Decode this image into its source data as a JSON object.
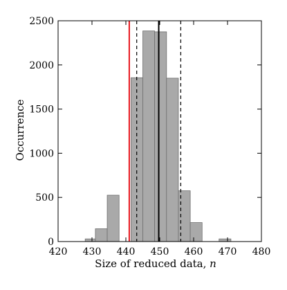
{
  "chart_data": {
    "type": "bar",
    "xlabel": "Size of reduced data, ",
    "xlabel_var": "n",
    "ylabel": "Occurrence",
    "xlim": [
      420,
      480
    ],
    "ylim": [
      0,
      2500
    ],
    "x_ticks": [
      420,
      430,
      440,
      450,
      460,
      470,
      480
    ],
    "y_ticks": [
      0,
      500,
      1000,
      1500,
      2000,
      2500
    ],
    "x_tick_labels": [
      "420",
      "430",
      "440",
      "450",
      "460",
      "470",
      "480"
    ],
    "y_tick_labels": [
      "0",
      "500",
      "1000",
      "1500",
      "2000",
      "2500"
    ],
    "bins": [
      {
        "start": 428,
        "end": 431,
        "count": 30
      },
      {
        "start": 431,
        "end": 434.5,
        "count": 145
      },
      {
        "start": 434.5,
        "end": 438,
        "count": 525
      },
      {
        "start": 441.5,
        "end": 445,
        "count": 1855
      },
      {
        "start": 445,
        "end": 448.5,
        "count": 2385
      },
      {
        "start": 448.5,
        "end": 452,
        "count": 2375
      },
      {
        "start": 452,
        "end": 455.5,
        "count": 1850
      },
      {
        "start": 455.5,
        "end": 459,
        "count": 575
      },
      {
        "start": 459,
        "end": 462.5,
        "count": 215
      },
      {
        "start": 467.5,
        "end": 471,
        "count": 30
      }
    ],
    "reference_lines": [
      {
        "x": 441,
        "style": "solid",
        "color": "#e8141b"
      },
      {
        "x": 443.2,
        "style": "dashed",
        "color": "#000000"
      },
      {
        "x": 449.7,
        "style": "solid",
        "color": "#000000"
      },
      {
        "x": 456.2,
        "style": "dashed",
        "color": "#000000"
      }
    ],
    "bar_fill": "#a9a9a9",
    "bar_edge": "#6e6e6e",
    "grid": false
  }
}
